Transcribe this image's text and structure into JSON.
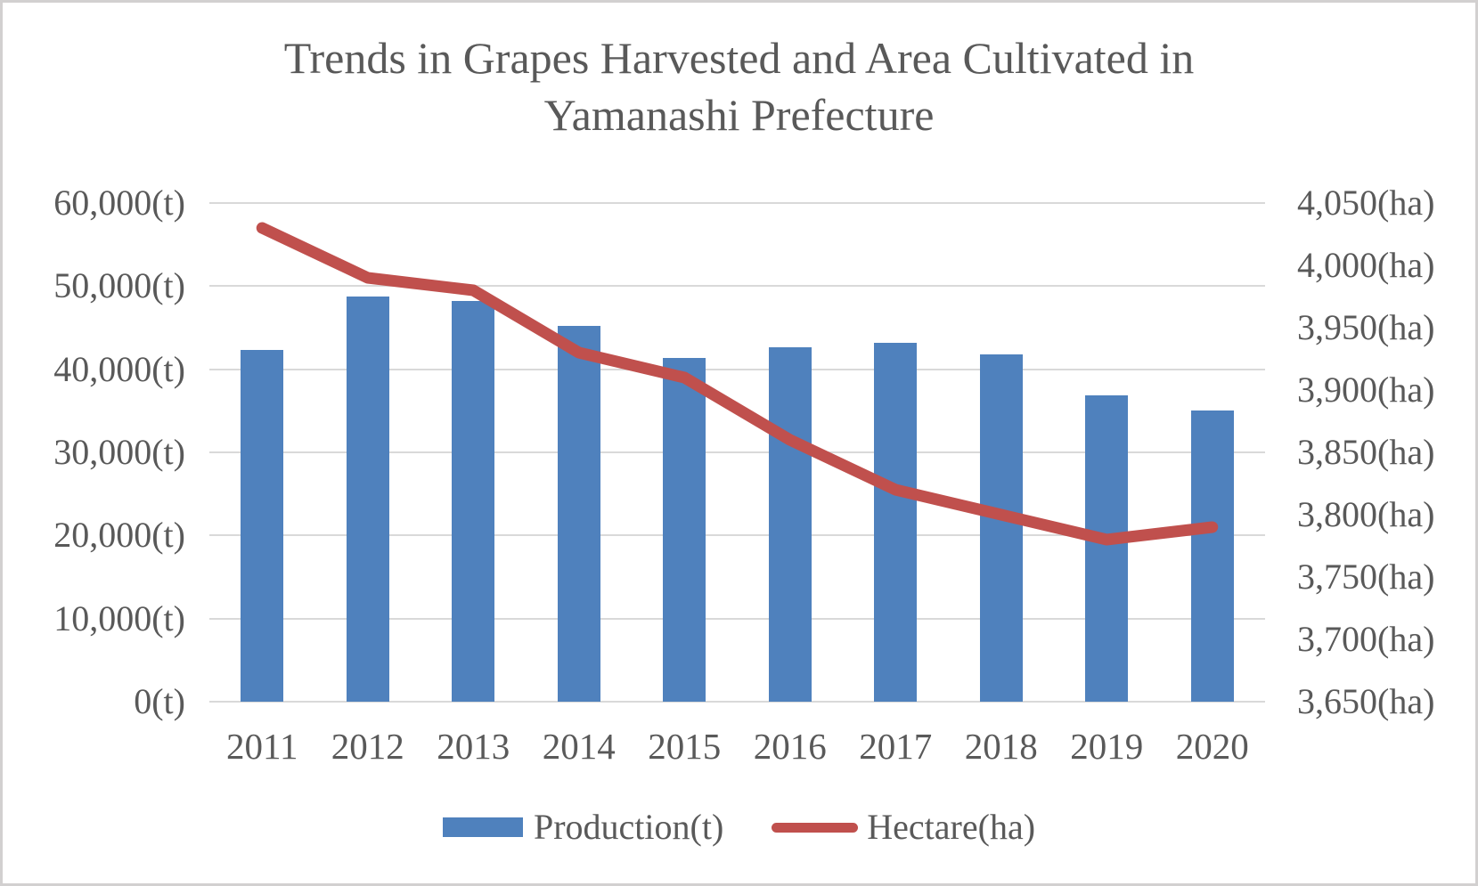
{
  "chart_data": {
    "type": "bar",
    "subtype": "bar-line-combo",
    "title": "Trends in Grapes Harvested and Area Cultivated in Yamanashi Prefecture",
    "title_lines": [
      "Trends in Grapes Harvested and Area Cultivated in",
      "Yamanashi Prefecture"
    ],
    "categories": [
      "2011",
      "2012",
      "2013",
      "2014",
      "2015",
      "2016",
      "2017",
      "2018",
      "2019",
      "2020"
    ],
    "series": [
      {
        "name": "Production(t)",
        "type": "bar",
        "axis": "left",
        "values": [
          42300,
          48700,
          48200,
          45200,
          41400,
          42600,
          43200,
          41800,
          36900,
          35000
        ]
      },
      {
        "name": "Hectare(ha)",
        "type": "line",
        "axis": "right",
        "values": [
          4030,
          3990,
          3980,
          3930,
          3910,
          3860,
          3820,
          3800,
          3780,
          3790
        ]
      }
    ],
    "left_axis": {
      "min": 0,
      "max": 60000,
      "step": 10000,
      "unit": "(t)",
      "tick_labels_top_to_bottom": [
        "60,000(t)",
        "50,000(t)",
        "40,000(t)",
        "30,000(t)",
        "20,000(t)",
        "10,000(t)",
        "0(t)"
      ]
    },
    "right_axis": {
      "min": 3650,
      "max": 4050,
      "step": 50,
      "unit": "(ha)",
      "tick_labels_top_to_bottom": [
        "4,050(ha)",
        "4,000(ha)",
        "3,950(ha)",
        "3,900(ha)",
        "3,850(ha)",
        "3,800(ha)",
        "3,750(ha)",
        "3,700(ha)",
        "3,650(ha)"
      ]
    },
    "grid": true,
    "legend_position": "bottom",
    "legend": [
      {
        "label": "Production(t)",
        "swatch": "bar-rectangle"
      },
      {
        "label": "Hectare(ha)",
        "swatch": "line-segment"
      }
    ]
  },
  "colors": {
    "bar": "#4f81bd",
    "line": "#c0504d",
    "text": "#595959",
    "gridline": "#d9d9d9",
    "border": "#d2d0d0",
    "bg": "#ffffff"
  }
}
